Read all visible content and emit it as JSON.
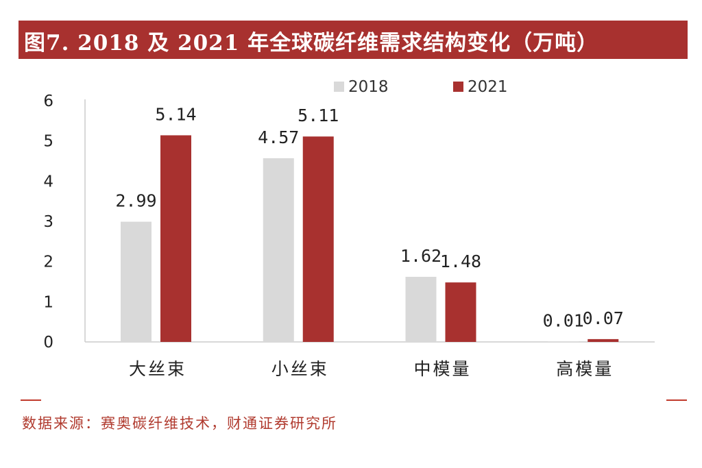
{
  "title": "图7. 2018 及 2021 年全球碳纤维需求结构变化（万吨）",
  "source": "数据来源：赛奥碳纤维技术，财通证券研究所",
  "colors": {
    "title_bg": "#a8312f",
    "s2018": "#d9d9d9",
    "s2021": "#a8312f",
    "source": "#b03a2e"
  },
  "chart_data": {
    "type": "bar",
    "title": "图7. 2018 及 2021 年全球碳纤维需求结构变化（万吨）",
    "xlabel": "",
    "ylabel": "",
    "categories": [
      "大丝束",
      "小丝束",
      "中模量",
      "高模量"
    ],
    "series": [
      {
        "name": "2018",
        "values": [
          2.99,
          4.57,
          1.62,
          0.01
        ],
        "labels": [
          "2.99",
          "4.57",
          "1.62",
          "0.01"
        ]
      },
      {
        "name": "2021",
        "values": [
          5.14,
          5.11,
          1.48,
          0.07
        ],
        "labels": [
          "5.14",
          "5.11",
          "1.48",
          "0.07"
        ]
      }
    ],
    "ylim": [
      0,
      6
    ],
    "yticks": [
      "0",
      "1",
      "2",
      "3",
      "4",
      "5",
      "6"
    ],
    "grid": false,
    "legend_position": "top"
  }
}
